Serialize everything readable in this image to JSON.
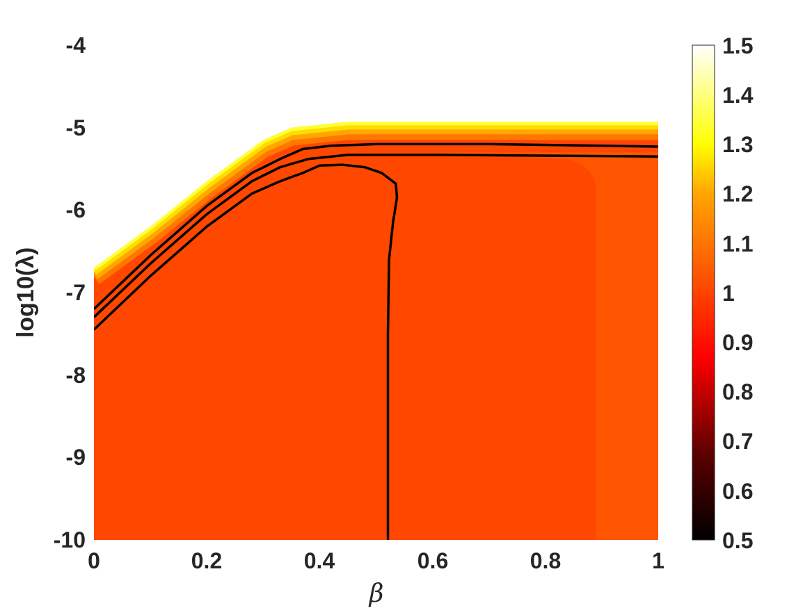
{
  "chart_data": {
    "type": "heatmap",
    "title": "",
    "xlabel": "β",
    "ylabel": "log10(λ)",
    "xlim": [
      0,
      1
    ],
    "ylim": [
      -10,
      -4
    ],
    "x_ticks": [
      "0",
      "0.2",
      "0.4",
      "0.6",
      "0.8",
      "1"
    ],
    "x_tick_values": [
      0,
      0.2,
      0.4,
      0.6,
      0.8,
      1
    ],
    "y_ticks": [
      "-4",
      "-5",
      "-6",
      "-7",
      "-8",
      "-9",
      "-10"
    ],
    "y_tick_values": [
      -4,
      -5,
      -6,
      -7,
      -8,
      -9,
      -10
    ],
    "colorbar": {
      "colormap": "hot",
      "range": [
        0.5,
        1.5
      ],
      "ticks": [
        "1.5",
        "1.4",
        "1.3",
        "1.2",
        "1.1",
        "1",
        "0.9",
        "0.8",
        "0.7",
        "0.6",
        "0.5"
      ],
      "tick_values": [
        1.5,
        1.4,
        1.3,
        1.2,
        1.1,
        1,
        0.9,
        0.8,
        0.7,
        0.6,
        0.5
      ]
    },
    "regions": {
      "main_value": 0.98,
      "right_strip_value": 1.0,
      "right_strip_beta_start": 0.89,
      "boundary_edge_value": 1.3,
      "boundary": [
        [
          0,
          -6.7
        ],
        [
          0.1,
          -6.2
        ],
        [
          0.2,
          -5.65
        ],
        [
          0.3,
          -5.15
        ],
        [
          0.35,
          -5.0
        ],
        [
          0.45,
          -4.93
        ],
        [
          1.0,
          -4.93
        ]
      ]
    },
    "contours": [
      {
        "points": [
          [
            0,
            -7.2
          ],
          [
            0.1,
            -6.55
          ],
          [
            0.2,
            -5.95
          ],
          [
            0.28,
            -5.55
          ],
          [
            0.33,
            -5.38
          ],
          [
            0.37,
            -5.26
          ],
          [
            0.42,
            -5.22
          ],
          [
            0.5,
            -5.2
          ],
          [
            0.7,
            -5.2
          ],
          [
            1.0,
            -5.23
          ]
        ]
      },
      {
        "points": [
          [
            0,
            -7.3
          ],
          [
            0.1,
            -6.65
          ],
          [
            0.2,
            -6.05
          ],
          [
            0.28,
            -5.65
          ],
          [
            0.33,
            -5.48
          ],
          [
            0.38,
            -5.38
          ],
          [
            0.45,
            -5.33
          ],
          [
            0.6,
            -5.33
          ],
          [
            1.0,
            -5.35
          ]
        ]
      },
      {
        "points": [
          [
            0,
            -7.45
          ],
          [
            0.1,
            -6.8
          ],
          [
            0.2,
            -6.2
          ],
          [
            0.28,
            -5.8
          ],
          [
            0.33,
            -5.65
          ],
          [
            0.37,
            -5.55
          ],
          [
            0.4,
            -5.46
          ],
          [
            0.44,
            -5.45
          ],
          [
            0.48,
            -5.48
          ],
          [
            0.51,
            -5.55
          ],
          [
            0.535,
            -5.68
          ],
          [
            0.537,
            -5.85
          ],
          [
            0.53,
            -6.15
          ],
          [
            0.523,
            -6.6
          ],
          [
            0.521,
            -7.5
          ],
          [
            0.521,
            -10
          ]
        ]
      }
    ]
  }
}
